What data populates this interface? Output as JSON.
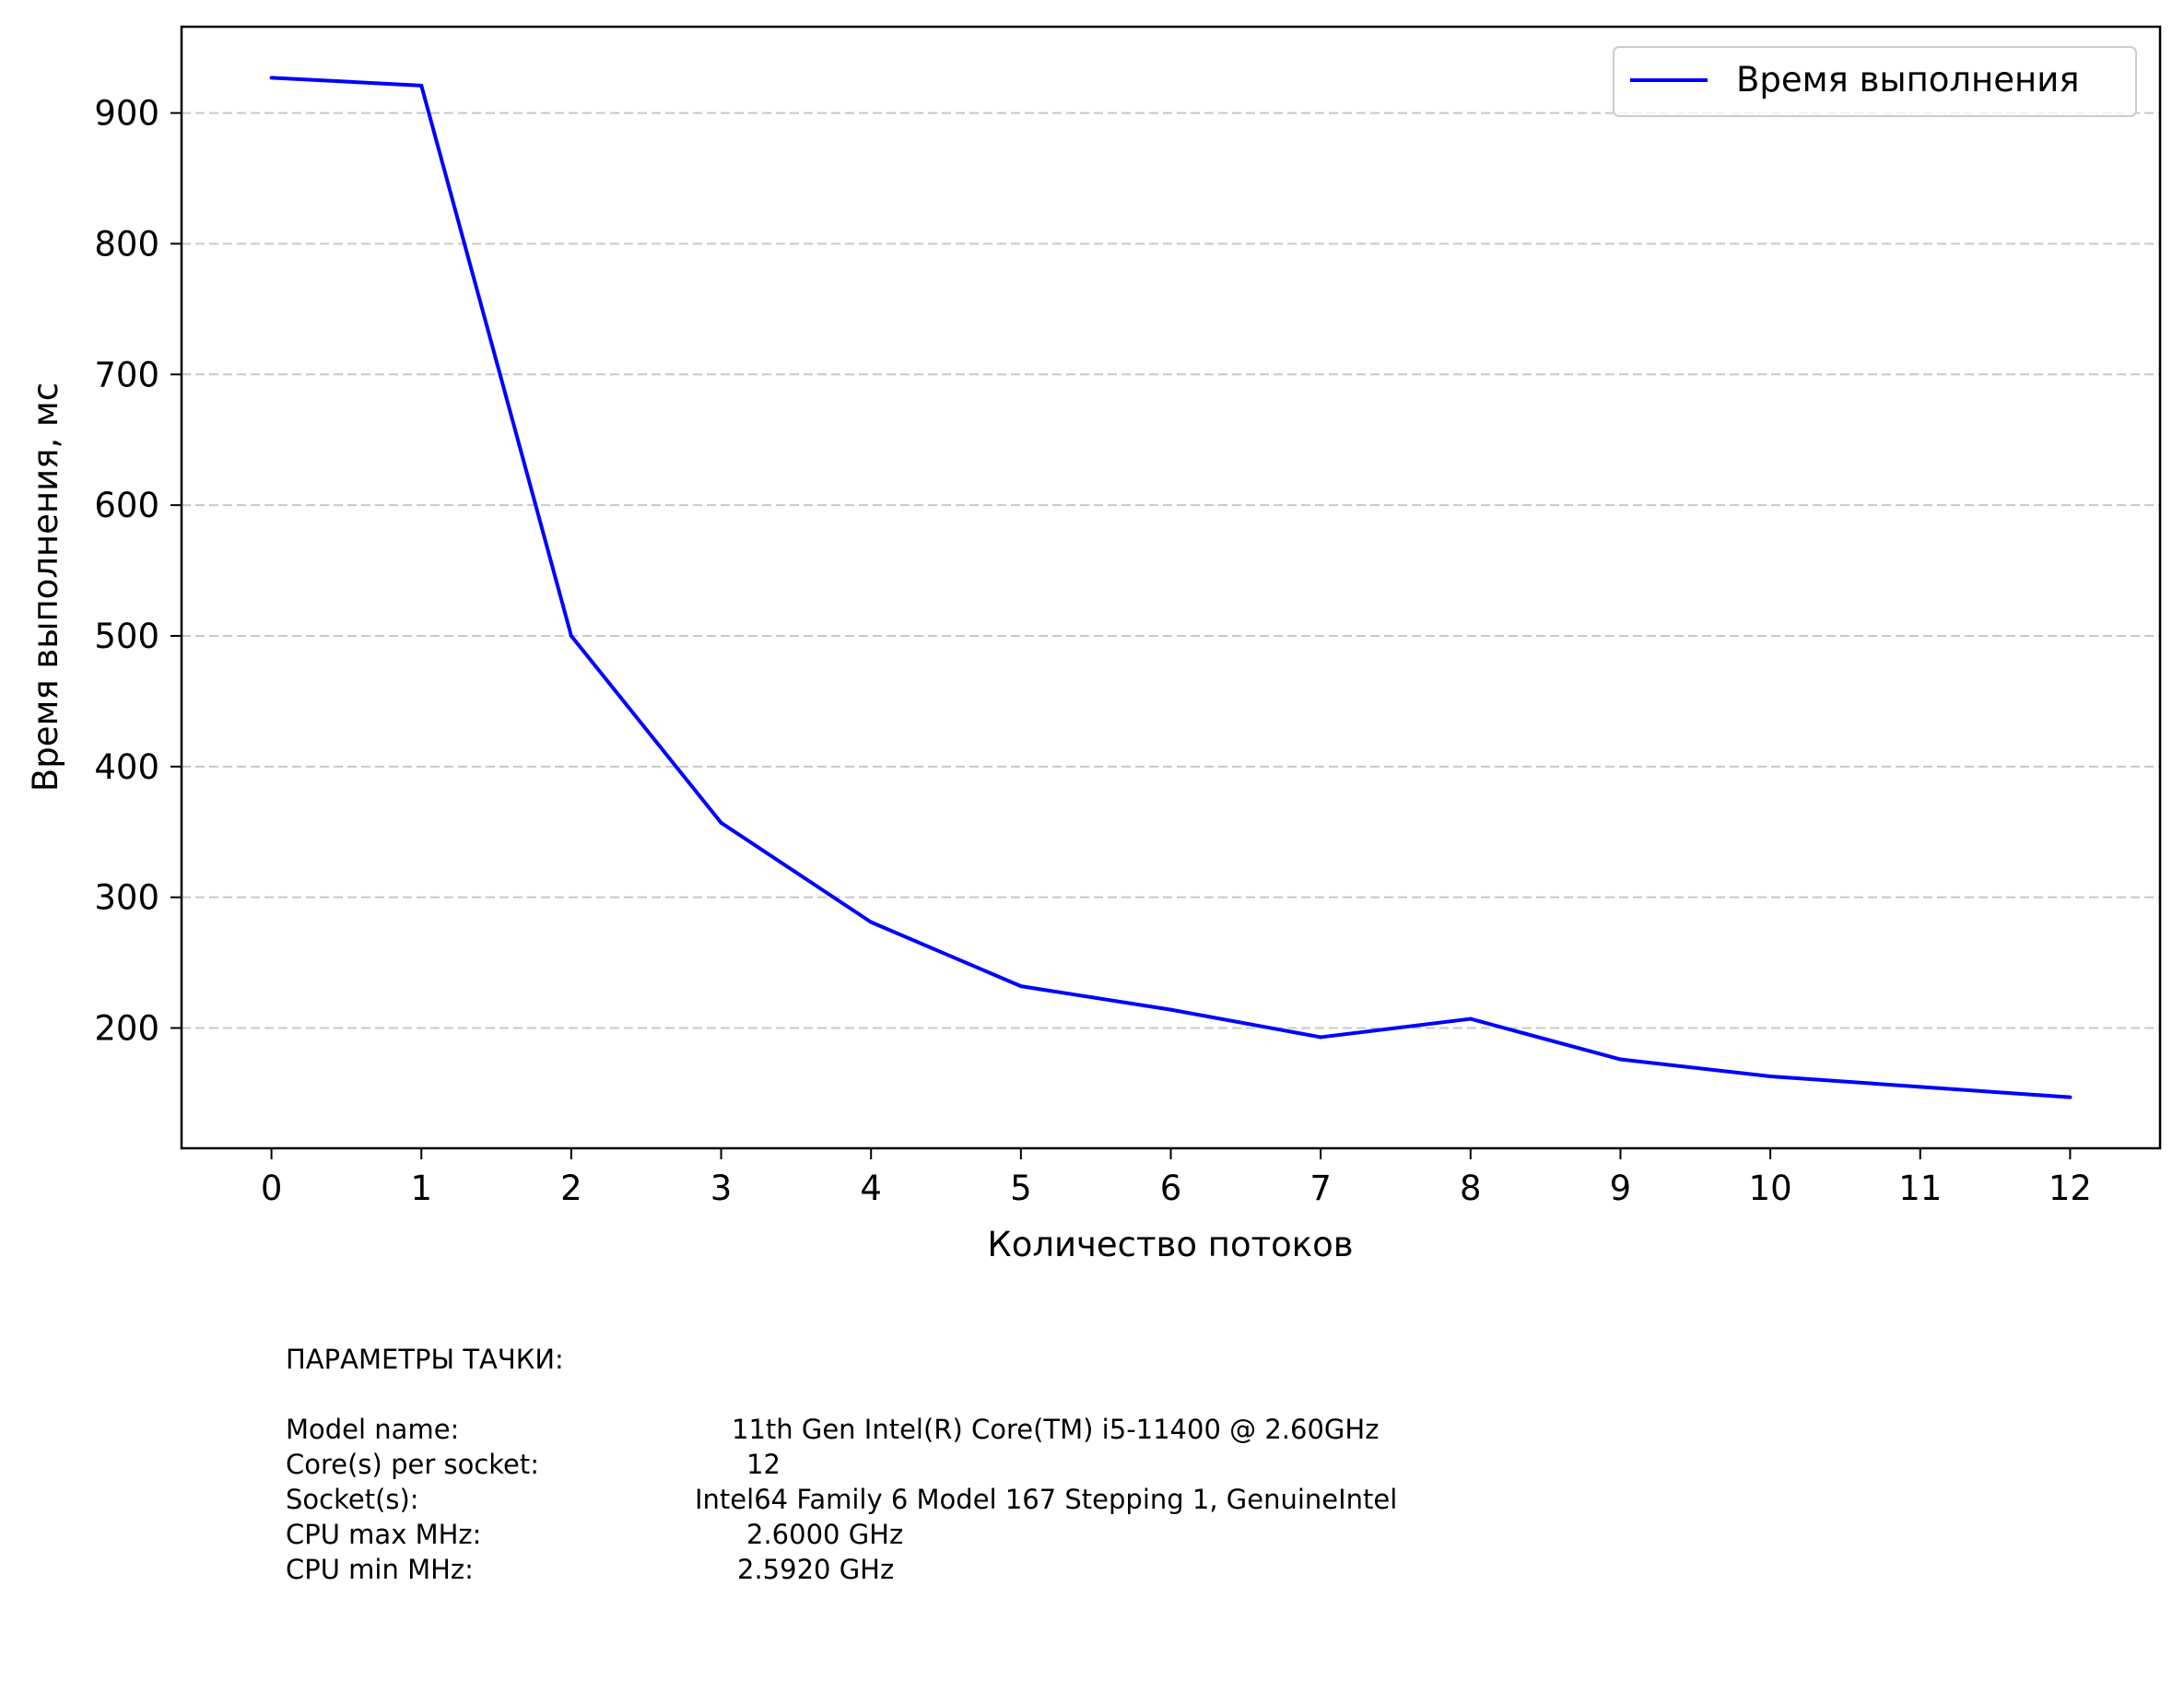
{
  "chart_data": {
    "type": "line",
    "title": "",
    "xlabel": "Количество потоков",
    "ylabel": "Время выполнения, мс",
    "x": [
      0,
      1,
      2,
      3,
      4,
      5,
      6,
      7,
      8,
      9,
      10,
      11,
      12
    ],
    "series": [
      {
        "name": "Время выполнения",
        "color": "#0000ff",
        "values": [
          927,
          921,
          500,
          357,
          281,
          232,
          214,
          193,
          207,
          176,
          163,
          155,
          147
        ]
      }
    ],
    "xticks": [
      "0",
      "1",
      "2",
      "3",
      "4",
      "5",
      "6",
      "7",
      "8",
      "9",
      "10",
      "11",
      "12"
    ],
    "yticks": [
      "200",
      "300",
      "400",
      "500",
      "600",
      "700",
      "800",
      "900"
    ],
    "xlim": [
      -0.6,
      12.6
    ],
    "ylim": [
      108,
      966
    ],
    "grid": "y-dashed",
    "legend_position": "upper right"
  },
  "specs": {
    "heading": "ПАРАМЕТРЫ ТАЧКИ:",
    "rows": [
      {
        "label": "Model name:",
        "value": "11th Gen Intel(R) Core(TM) i5-11400 @ 2.60GHz"
      },
      {
        "label": "Core(s) per socket:",
        "value": "12"
      },
      {
        "label": "Socket(s):",
        "value": "Intel64 Family 6 Model 167 Stepping 1, GenuineIntel"
      },
      {
        "label": "CPU max MHz:",
        "value": "2.6000 GHz"
      },
      {
        "label": "CPU min MHz:",
        "value": "2.5920 GHz"
      }
    ]
  }
}
